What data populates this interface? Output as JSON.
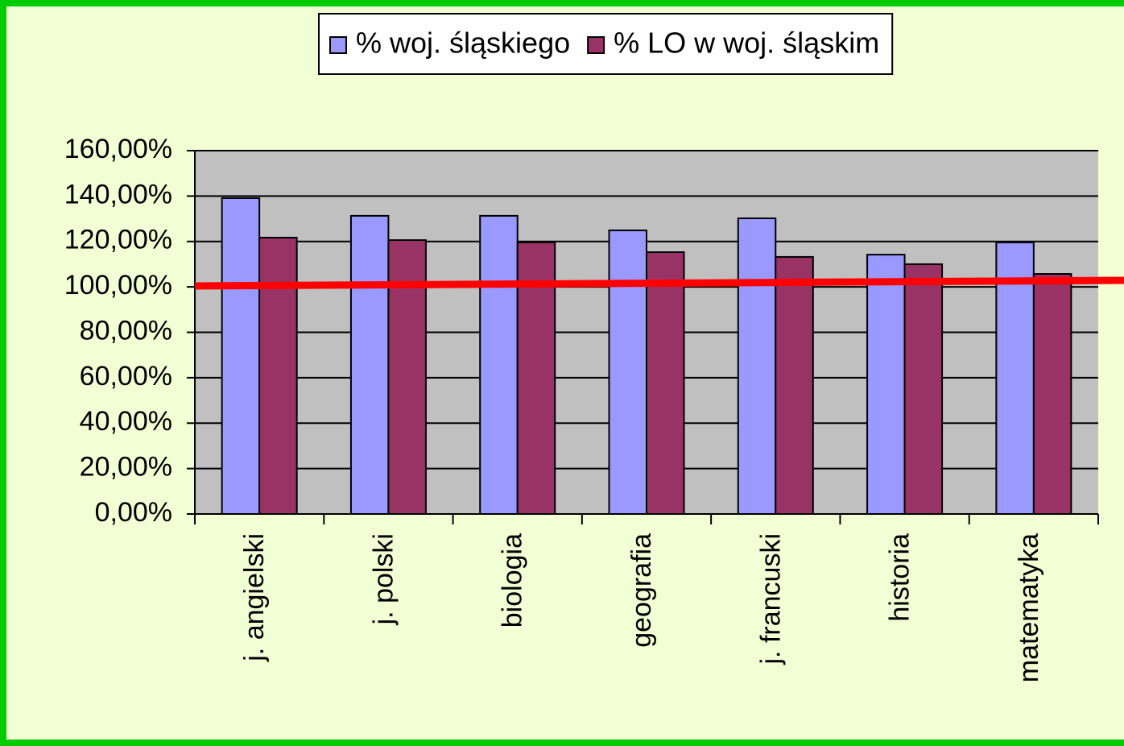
{
  "chart_data": {
    "type": "bar",
    "categories": [
      "j. angielski",
      "j. polski",
      "biologia",
      "geografia",
      "j. francuski",
      "historia",
      "matematyka"
    ],
    "series": [
      {
        "name": "% woj. śląskiego",
        "color": "#9999ff",
        "values": [
          139.1,
          131.3,
          131.3,
          124.9,
          130.2,
          114.2,
          119.6
        ]
      },
      {
        "name": "% LO w woj. śląskim",
        "color": "#993366",
        "values": [
          121.7,
          120.6,
          119.6,
          115.3,
          113.2,
          110.0,
          105.7
        ]
      }
    ],
    "ylim": [
      0,
      160
    ],
    "yticks": [
      {
        "value": 0,
        "label": "0,00%"
      },
      {
        "value": 20,
        "label": "20,00%"
      },
      {
        "value": 40,
        "label": "40,00%"
      },
      {
        "value": 60,
        "label": "60,00%"
      },
      {
        "value": 80,
        "label": "80,00%"
      },
      {
        "value": 100,
        "label": "100,00%"
      },
      {
        "value": 120,
        "label": "120,00%"
      },
      {
        "value": 140,
        "label": "140,00%"
      },
      {
        "value": 160,
        "label": "160,00%"
      }
    ],
    "grid": true,
    "legend": "top"
  }
}
